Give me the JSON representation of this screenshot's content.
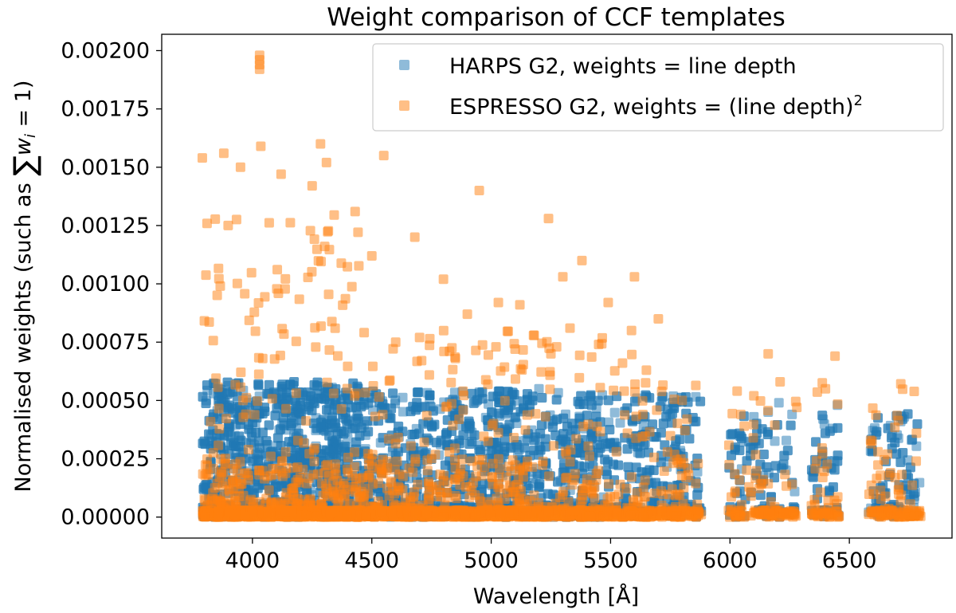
{
  "chart_data": {
    "type": "scatter",
    "title": "Weight comparison of CCF templates",
    "xlabel": "Wavelength [Å]",
    "ylabel": {
      "prefix": "Normalised weights (such as ",
      "sum_symbol": "∑",
      "var": "w",
      "subscript": "i",
      "suffix": " = 1)"
    },
    "xlim": [
      3620,
      6930
    ],
    "ylim": [
      -9e-05,
      0.00207
    ],
    "xticks": [
      4000,
      4500,
      5000,
      5500,
      6000,
      6500
    ],
    "xtick_labels": [
      "4000",
      "4500",
      "5000",
      "5500",
      "6000",
      "6500"
    ],
    "yticks": [
      0,
      0.00025,
      0.0005,
      0.00075,
      0.001,
      0.00125,
      0.0015,
      0.00175,
      0.002
    ],
    "ytick_labels": [
      "0.00000",
      "0.00025",
      "0.00050",
      "0.00075",
      "0.00100",
      "0.00125",
      "0.00150",
      "0.00175",
      "0.00200"
    ],
    "legend": {
      "placement": "top-right",
      "entries": [
        {
          "name": "HARPS G2, weights = line depth",
          "color": "#1f77b4"
        },
        {
          "name": "ESPRESSO G2, weights = (line depth)",
          "superscript": "2",
          "color": "#ff7f0e"
        }
      ]
    },
    "series": [
      {
        "name": "HARPS G2, weights = line depth",
        "color": "#1f77b4",
        "marker_alpha": 0.5,
        "wavelength_ranges": [
          [
            3790,
            5880
          ],
          [
            5990,
            6280
          ],
          [
            6340,
            6460
          ],
          [
            6580,
            6800
          ]
        ],
        "weight_max": 0.00058,
        "points": [
          [
            6715,
            0.00041
          ],
          [
            6450,
            0.00048
          ],
          [
            6390,
            0.00042
          ],
          [
            6260,
            0.00044
          ],
          [
            6100,
            0.00043
          ],
          [
            6160,
            0.00045
          ],
          [
            6205,
            0.00049
          ],
          [
            6040,
            0.00035
          ],
          [
            6430,
            0.00038
          ],
          [
            6680,
            0.00035
          ],
          [
            6760,
            0.00033
          ],
          [
            5610,
            0.00051
          ],
          [
            5750,
            0.00044
          ],
          [
            5850,
            0.00041
          ],
          [
            5200,
            0.00055
          ],
          [
            4950,
            0.00053
          ]
        ]
      },
      {
        "name": "ESPRESSO G2, weights = (line depth)^2",
        "color": "#ff7f0e",
        "marker_alpha": 0.5,
        "wavelength_ranges": [
          [
            3790,
            5880
          ],
          [
            5990,
            6280
          ],
          [
            6340,
            6460
          ],
          [
            6580,
            6800
          ]
        ],
        "points": [
          [
            4030,
            0.00198
          ],
          [
            4030,
            0.00196
          ],
          [
            4030,
            0.00194
          ],
          [
            4030,
            0.00192
          ],
          [
            4285,
            0.0016
          ],
          [
            4035,
            0.00159
          ],
          [
            4550,
            0.00155
          ],
          [
            3880,
            0.00156
          ],
          [
            3790,
            0.00154
          ],
          [
            4310,
            0.00152
          ],
          [
            4950,
            0.0014
          ],
          [
            5240,
            0.00128
          ],
          [
            5380,
            0.0011
          ],
          [
            4680,
            0.0012
          ],
          [
            4120,
            0.00147
          ],
          [
            4430,
            0.00131
          ],
          [
            3950,
            0.0015
          ],
          [
            4250,
            0.00142
          ],
          [
            4500,
            0.00112
          ],
          [
            4800,
            0.00102
          ],
          [
            5300,
            0.00103
          ],
          [
            5120,
            0.00091
          ],
          [
            5600,
            0.00103
          ],
          [
            5490,
            0.00092
          ],
          [
            5030,
            0.00092
          ],
          [
            5700,
            0.00085
          ],
          [
            4900,
            0.00087
          ],
          [
            6160,
            0.0007
          ],
          [
            6440,
            0.00069
          ],
          [
            6100,
            0.00052
          ],
          [
            6210,
            0.00058
          ],
          [
            6030,
            0.00054
          ],
          [
            6400,
            0.00055
          ],
          [
            6280,
            0.00047
          ],
          [
            6660,
            0.00027
          ],
          [
            6780,
            0.00024
          ],
          [
            6620,
            0.00028
          ],
          [
            5650,
            0.00063
          ],
          [
            5800,
            0.0005
          ],
          [
            5820,
            0.00042
          ],
          [
            5550,
            0.00066
          ],
          [
            5180,
            0.00078
          ],
          [
            4600,
            0.00075
          ],
          [
            4700,
            0.00077
          ],
          [
            4850,
            0.00068
          ],
          [
            5020,
            0.00073
          ],
          [
            5100,
            0.00072
          ],
          [
            5250,
            0.0007
          ],
          [
            5450,
            0.00074
          ],
          [
            5330,
            0.00081
          ]
        ]
      }
    ]
  }
}
